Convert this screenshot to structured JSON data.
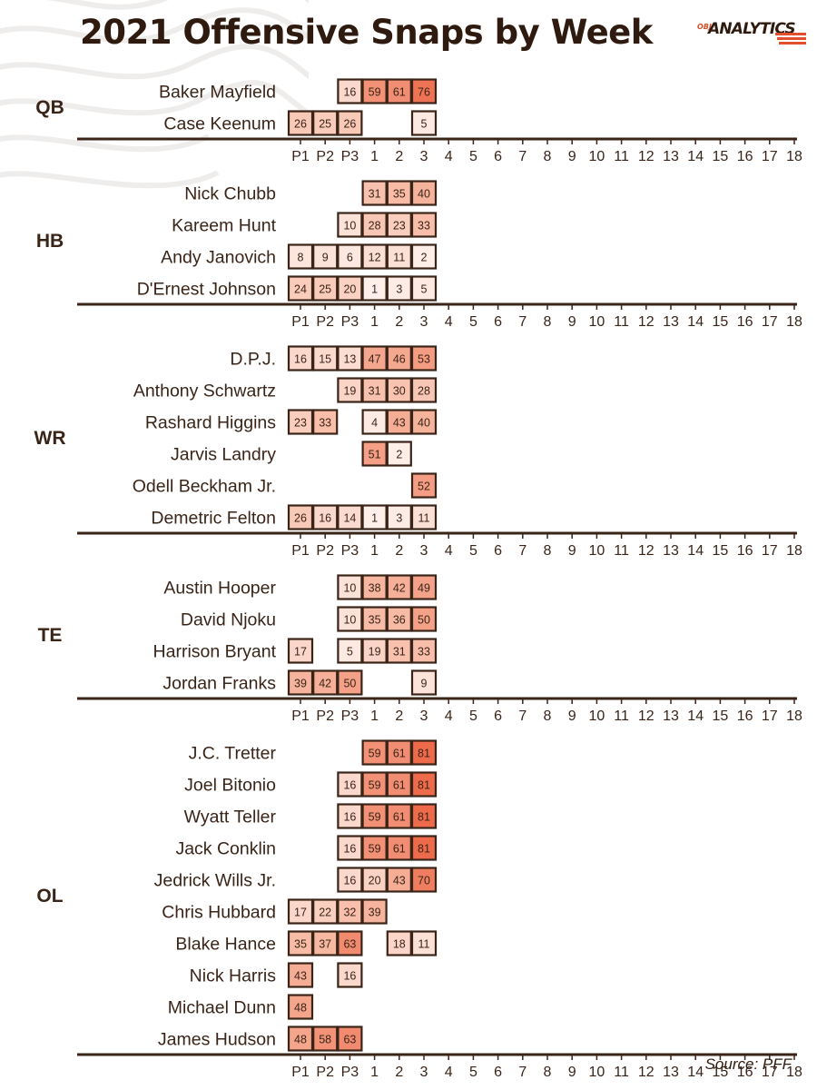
{
  "title": "2021 Offensive Snaps by Week",
  "logo": {
    "small": "OBJ",
    "main": "ANALYTICS"
  },
  "source": "Source: PFF",
  "colors": {
    "dark": "#3a2418",
    "low": "#fdf1ec",
    "mid": "#f7b9a3",
    "high": "#ed6a4a",
    "accent": "#e24f2c"
  },
  "chart_data": {
    "type": "heatmap",
    "title": "2021 Offensive Snaps by Week",
    "columns": [
      "P1",
      "P2",
      "P3",
      "1",
      "2",
      "3",
      "4",
      "5",
      "6",
      "7",
      "8",
      "9",
      "10",
      "11",
      "12",
      "13",
      "14",
      "15",
      "16",
      "17",
      "18"
    ],
    "groups": [
      {
        "position": "QB",
        "players": [
          {
            "name": "Baker Mayfield",
            "values": [
              null,
              null,
              16,
              59,
              61,
              76
            ]
          },
          {
            "name": "Case Keenum",
            "values": [
              26,
              25,
              26,
              null,
              null,
              5
            ]
          }
        ]
      },
      {
        "position": "HB",
        "players": [
          {
            "name": "Nick Chubb",
            "values": [
              null,
              null,
              null,
              31,
              35,
              40
            ]
          },
          {
            "name": "Kareem Hunt",
            "values": [
              null,
              null,
              10,
              28,
              23,
              33
            ]
          },
          {
            "name": "Andy Janovich",
            "values": [
              8,
              9,
              6,
              12,
              11,
              2
            ]
          },
          {
            "name": "D'Ernest Johnson",
            "values": [
              24,
              25,
              20,
              1,
              3,
              5
            ]
          }
        ]
      },
      {
        "position": "WR",
        "players": [
          {
            "name": "D.P.J.",
            "values": [
              16,
              15,
              13,
              47,
              46,
              53
            ]
          },
          {
            "name": "Anthony Schwartz",
            "values": [
              null,
              null,
              19,
              31,
              30,
              28
            ]
          },
          {
            "name": "Rashard Higgins",
            "values": [
              23,
              33,
              null,
              4,
              43,
              40
            ]
          },
          {
            "name": "Jarvis Landry",
            "values": [
              null,
              null,
              null,
              51,
              2,
              null
            ]
          },
          {
            "name": "Odell Beckham Jr.",
            "values": [
              null,
              null,
              null,
              null,
              null,
              52
            ]
          },
          {
            "name": "Demetric Felton",
            "values": [
              26,
              16,
              14,
              1,
              3,
              11
            ]
          }
        ]
      },
      {
        "position": "TE",
        "players": [
          {
            "name": "Austin Hooper",
            "values": [
              null,
              null,
              10,
              38,
              42,
              49
            ]
          },
          {
            "name": "David Njoku",
            "values": [
              null,
              null,
              10,
              35,
              36,
              50
            ]
          },
          {
            "name": "Harrison Bryant",
            "values": [
              17,
              null,
              5,
              19,
              31,
              33
            ]
          },
          {
            "name": "Jordan Franks",
            "values": [
              39,
              42,
              50,
              null,
              null,
              9
            ]
          }
        ]
      },
      {
        "position": "OL",
        "players": [
          {
            "name": "J.C. Tretter",
            "values": [
              null,
              null,
              null,
              59,
              61,
              81
            ]
          },
          {
            "name": "Joel Bitonio",
            "values": [
              null,
              null,
              16,
              59,
              61,
              81
            ]
          },
          {
            "name": "Wyatt Teller",
            "values": [
              null,
              null,
              16,
              59,
              61,
              81
            ]
          },
          {
            "name": "Jack Conklin",
            "values": [
              null,
              null,
              16,
              59,
              61,
              81
            ]
          },
          {
            "name": "Jedrick Wills Jr.",
            "values": [
              null,
              null,
              16,
              20,
              43,
              70
            ]
          },
          {
            "name": "Chris Hubbard",
            "values": [
              17,
              22,
              32,
              39,
              null,
              null
            ]
          },
          {
            "name": "Blake Hance",
            "values": [
              35,
              37,
              63,
              null,
              18,
              11
            ]
          },
          {
            "name": "Nick Harris",
            "values": [
              43,
              null,
              16,
              null,
              null,
              null
            ]
          },
          {
            "name": "Michael Dunn",
            "values": [
              48,
              null,
              null,
              null,
              null,
              null
            ]
          },
          {
            "name": "James Hudson",
            "values": [
              48,
              58,
              63,
              null,
              null,
              null
            ]
          }
        ]
      }
    ]
  }
}
